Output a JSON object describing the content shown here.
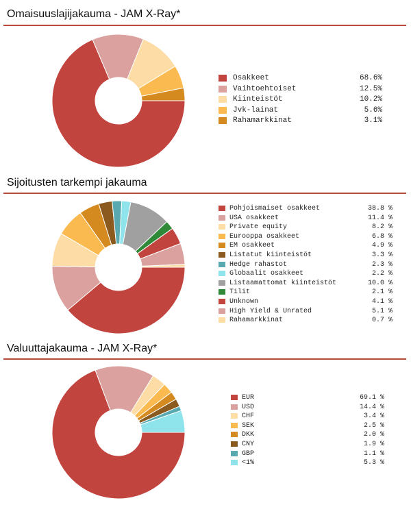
{
  "chart_data": [
    {
      "type": "pie",
      "title": "Omaisuuslajijakauma - JAM X-Ray*",
      "categories": [
        "Osakkeet",
        "Vaihtoehtoiset",
        "Kiinteistöt",
        "Jvk-lainat",
        "Rahamarkkinat"
      ],
      "values": [
        68.6,
        12.5,
        10.2,
        5.6,
        3.1
      ],
      "value_labels": [
        "68.6%",
        "12.5%",
        "10.2%",
        "5.6%",
        "3.1%"
      ],
      "colors": [
        "#c1443f",
        "#daa19e",
        "#fddca5",
        "#fbba4f",
        "#d48a1f"
      ],
      "legend": "right"
    },
    {
      "type": "pie",
      "title": "Sijoitusten tarkempi jakauma",
      "categories": [
        "Pohjoismaiset osakkeet",
        "USA osakkeet",
        "Private equity",
        "Eurooppa osakkeet",
        "EM osakkeet",
        "Listatut kiinteistöt",
        "Hedge rahastot",
        "Globaalit osakkeet",
        "Listaamattomat kiinteistöt",
        "Tilit",
        "Unknown",
        "High Yield & Unrated",
        "Rahamarkkinat"
      ],
      "values": [
        38.8,
        11.4,
        8.2,
        6.8,
        4.9,
        3.3,
        2.3,
        2.2,
        10.0,
        2.1,
        4.1,
        5.1,
        0.7
      ],
      "value_labels": [
        "38.8 %",
        "11.4 %",
        "8.2 %",
        "6.8 %",
        "4.9 %",
        "3.3 %",
        "2.3 %",
        "2.2 %",
        "10.0 %",
        "2.1 %",
        "4.1 %",
        "5.1 %",
        "0.7 %"
      ],
      "colors": [
        "#c1443f",
        "#daa19e",
        "#fddca5",
        "#fbba4f",
        "#d48a1f",
        "#8a5a1f",
        "#58aab0",
        "#8fe3ea",
        "#a0a0a0",
        "#2e8a38",
        "#c1443f",
        "#daa19e",
        "#fddca5"
      ],
      "legend": "right"
    },
    {
      "type": "pie",
      "title": "Valuuttajakauma - JAM X-Ray*",
      "categories": [
        "EUR",
        "USD",
        "CHF",
        "SEK",
        "DKK",
        "CNY",
        "GBP",
        "<1%"
      ],
      "values": [
        69.1,
        14.4,
        3.4,
        2.5,
        2.0,
        1.9,
        1.1,
        5.3
      ],
      "value_labels": [
        "69.1 %",
        "14.4 %",
        "3.4 %",
        "2.5 %",
        "2.0 %",
        "1.9 %",
        "1.1 %",
        "5.3 %"
      ],
      "colors": [
        "#c1443f",
        "#daa19e",
        "#fddca5",
        "#fbba4f",
        "#d48a1f",
        "#8a5a1f",
        "#58aab0",
        "#8fe3ea"
      ],
      "legend": "right"
    }
  ]
}
